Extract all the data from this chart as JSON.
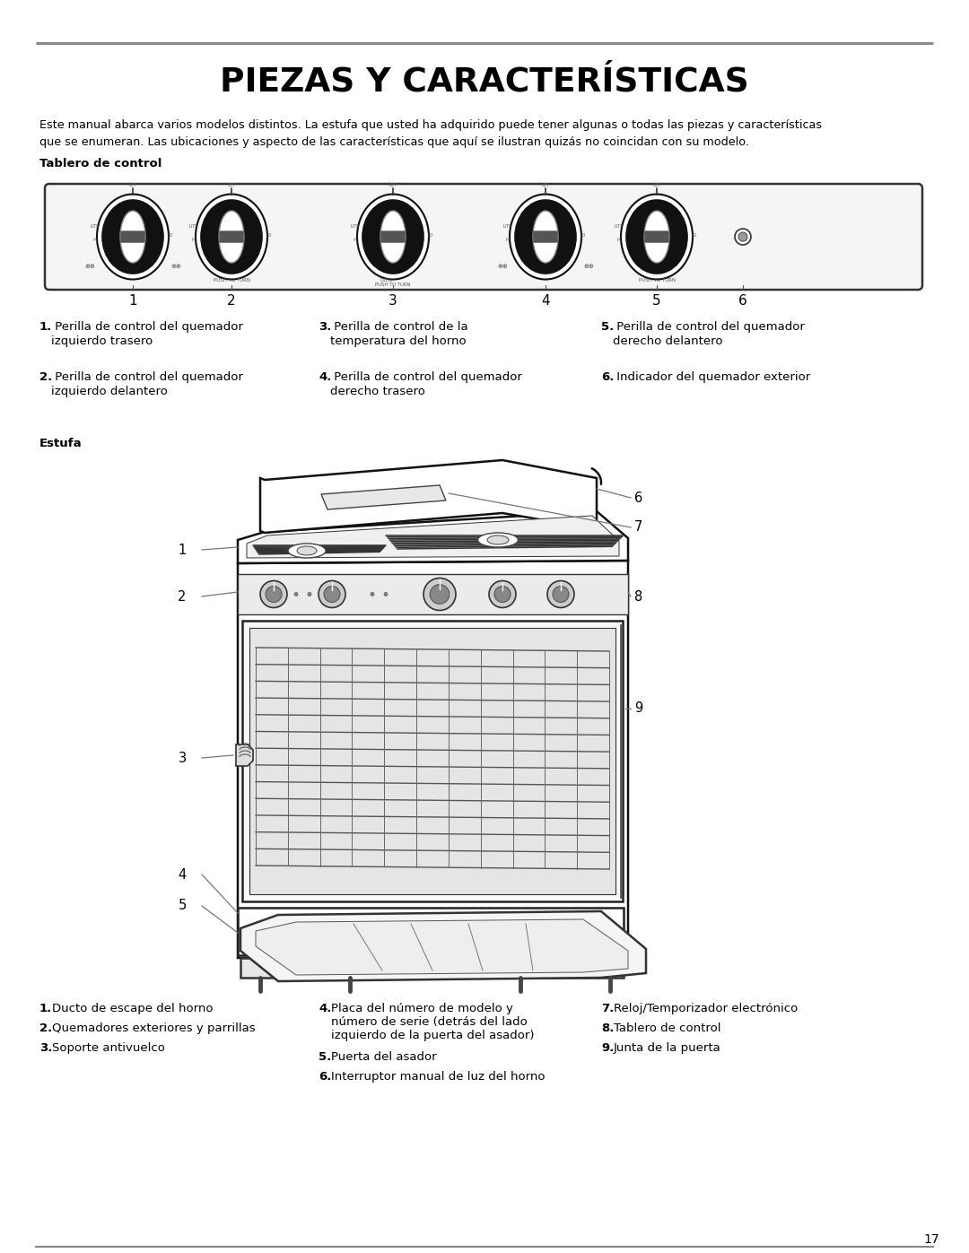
{
  "title": "PIEZAS Y CARACTERÍSTICAS",
  "intro_line1": "Este manual abarca varios modelos distintos. La estufa que usted ha adquirido puede tener algunas o todas las piezas y características",
  "intro_line2": "que se enumeran. Las ubicaciones y aspecto de las características que aquí se ilustran quizás no coincidan con su modelo.",
  "section1_label": "Tablero de control",
  "section2_label": "Estufa",
  "ctrl_legend_col1_items": [
    [
      "1.",
      " Perilla de control del quemador",
      "   izquierdo trasero"
    ],
    [
      "2.",
      " Perilla de control del quemador",
      "   izquierdo delantero"
    ]
  ],
  "ctrl_legend_col2_items": [
    [
      "3.",
      " Perilla de control de la",
      "   temperatura del horno"
    ],
    [
      "4.",
      " Perilla de control del quemador",
      "   derecho trasero"
    ]
  ],
  "ctrl_legend_col3_items": [
    [
      "5.",
      " Perilla de control del quemador",
      "   derecho delantero"
    ],
    [
      "6.",
      " Indicador del quemador exterior",
      ""
    ]
  ],
  "stove_legend_col1": [
    [
      "1.",
      " Ducto de escape del horno"
    ],
    [
      "2.",
      " Quemadores exteriores y parrillas"
    ],
    [
      "3.",
      " Soporte antivuelco"
    ]
  ],
  "stove_legend_col2": [
    [
      "4.",
      " Placa del número de modelo y",
      "   número de serie (detrás del lado",
      "   izquierdo de la puerta del asador)"
    ],
    [
      "5.",
      " Puerta del asador"
    ],
    [
      "6.",
      " Interruptor manual de luz del horno"
    ]
  ],
  "stove_legend_col3": [
    [
      "7.",
      " Reloj/Temporizador electrónico"
    ],
    [
      "8.",
      " Tablero de control"
    ],
    [
      "9.",
      " Junta de la puerta"
    ]
  ],
  "page_number": "17"
}
